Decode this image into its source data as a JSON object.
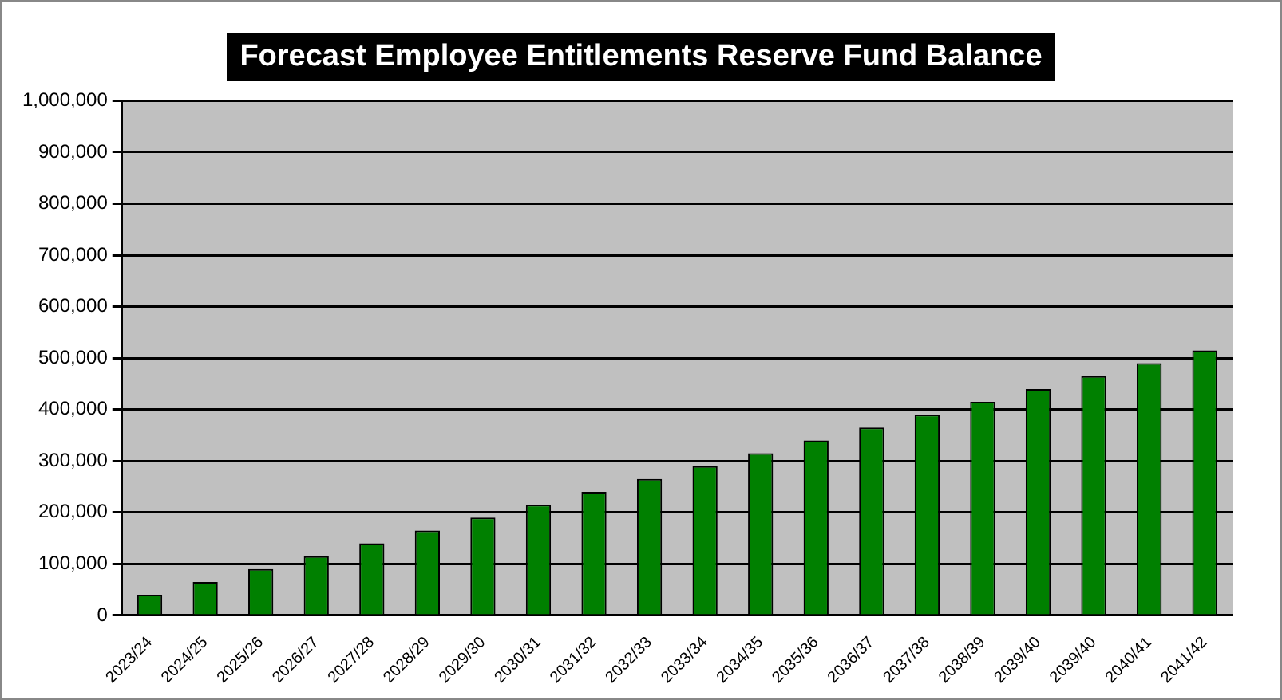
{
  "chart_data": {
    "type": "bar",
    "title": "Forecast Employee Entitlements Reserve Fund Balance",
    "categories": [
      "2023/24",
      "2024/25",
      "2025/26",
      "2026/27",
      "2027/28",
      "2028/29",
      "2029/30",
      "2030/31",
      "2031/32",
      "2032/33",
      "2033/34",
      "2034/35",
      "2035/36",
      "2036/37",
      "2037/38",
      "2038/39",
      "2039/40",
      "2039/40",
      "2040/41",
      "2041/42"
    ],
    "values": [
      40000,
      65000,
      90000,
      115000,
      140000,
      165000,
      190000,
      215000,
      240000,
      265000,
      290000,
      315000,
      340000,
      365000,
      390000,
      415000,
      440000,
      465000,
      490000,
      515000
    ],
    "color": "#008000",
    "ylim": [
      0,
      1000000
    ],
    "yticks": [
      0,
      {
        "value": 100000,
        "label": "100,000"
      },
      {
        "value": 200000,
        "label": "200,000"
      },
      {
        "value": 300000,
        "label": "300,000"
      },
      {
        "value": 400000,
        "label": "400,000"
      },
      {
        "value": 500000,
        "label": "500,000"
      },
      {
        "value": 600000,
        "label": "600,000"
      },
      {
        "value": 700000,
        "label": "700,000"
      },
      {
        "value": 800000,
        "label": "800,000"
      },
      {
        "value": 900000,
        "label": "900,000"
      },
      {
        "value": 1000000,
        "label": "1,000,000"
      }
    ],
    "grid": "y",
    "legend": false
  }
}
